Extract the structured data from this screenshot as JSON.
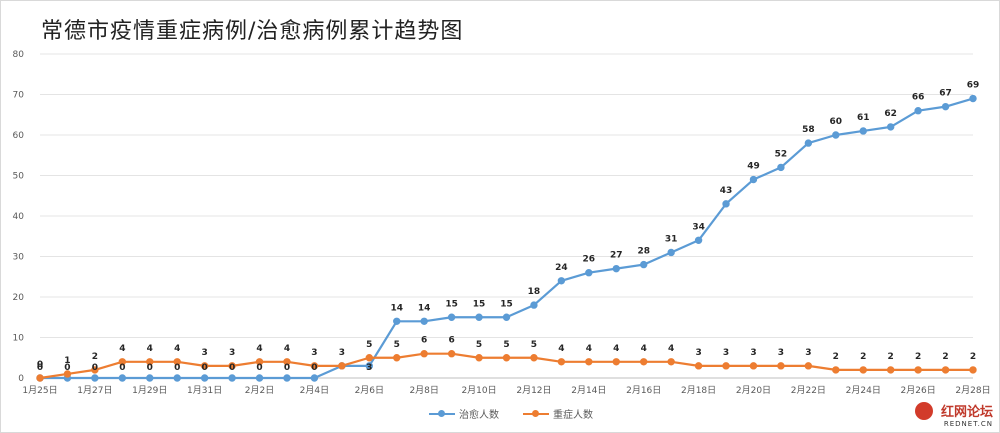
{
  "title": "常德市疫情重症病例/治愈病例累计趋势图",
  "watermark": {
    "brand": "红网论坛",
    "site": "REDNET.CN"
  },
  "chart_data": {
    "type": "line",
    "ylim": [
      0,
      80
    ],
    "yticks": [
      0,
      10,
      20,
      30,
      40,
      50,
      60,
      70,
      80
    ],
    "grid": true,
    "legend_position": "bottom",
    "x": [
      "1月25日",
      "1月26日",
      "1月27日",
      "1月28日",
      "1月29日",
      "1月30日",
      "1月31日",
      "2月1日",
      "2月2日",
      "2月3日",
      "2月4日",
      "2月5日",
      "2月6日",
      "2月7日",
      "2月8日",
      "2月9日",
      "2月10日",
      "2月11日",
      "2月12日",
      "2月13日",
      "2月14日",
      "2月15日",
      "2月16日",
      "2月17日",
      "2月18日",
      "2月19日",
      "2月20日",
      "2月21日",
      "2月22日",
      "2月23日",
      "2月24日",
      "2月25日",
      "2月26日",
      "2月27日",
      "2月28日"
    ],
    "xtick_labels": [
      "1月25日",
      "1月27日",
      "1月29日",
      "1月31日",
      "2月2日",
      "2月4日",
      "2月6日",
      "2月8日",
      "2月10日",
      "2月12日",
      "2月14日",
      "2月16日",
      "2月18日",
      "2月20日",
      "2月22日",
      "2月24日",
      "2月26日",
      "2月28日"
    ],
    "series": [
      {
        "name": "治愈人数",
        "color": "#5b9bd5",
        "values": [
          0,
          0,
          0,
          0,
          0,
          0,
          0,
          0,
          0,
          0,
          0,
          3,
          3,
          14,
          14,
          15,
          15,
          15,
          18,
          24,
          26,
          27,
          28,
          31,
          34,
          43,
          49,
          52,
          58,
          60,
          61,
          62,
          66,
          67,
          69
        ],
        "labels": [
          "",
          "",
          "",
          "",
          "",
          "",
          "",
          "",
          "",
          "",
          "",
          "",
          "",
          "14",
          "14",
          "15",
          "15",
          "15",
          "18",
          "24",
          "26",
          "27",
          "28",
          "31",
          "34",
          "43",
          "49",
          "52",
          "58",
          "60",
          "61",
          "62",
          "66",
          "67",
          "69"
        ]
      },
      {
        "name": "重症人数",
        "color": "#ed7d31",
        "values": [
          0,
          1,
          2,
          4,
          4,
          4,
          3,
          3,
          4,
          4,
          3,
          3,
          5,
          5,
          6,
          6,
          5,
          5,
          5,
          4,
          4,
          4,
          4,
          4,
          3,
          3,
          3,
          3,
          3,
          2,
          2,
          2,
          2,
          2,
          2
        ],
        "labels": [
          "0",
          "1",
          "2",
          "4",
          "4",
          "4",
          "3",
          "3",
          "4",
          "4",
          "3",
          "3",
          "5",
          "5",
          "6",
          "6",
          "5",
          "5",
          "5",
          "4",
          "4",
          "4",
          "4",
          "4",
          "3",
          "3",
          "3",
          "3",
          "3",
          "2",
          "2",
          "2",
          "2",
          "2",
          "2"
        ]
      },
      {
        "name": "",
        "color": "#5b9bd5",
        "labels_only": true,
        "labels": [
          "0",
          "0",
          "0",
          "0",
          "0",
          "0",
          "0",
          "0",
          "0",
          "0",
          "0",
          "",
          "3"
        ]
      }
    ]
  }
}
